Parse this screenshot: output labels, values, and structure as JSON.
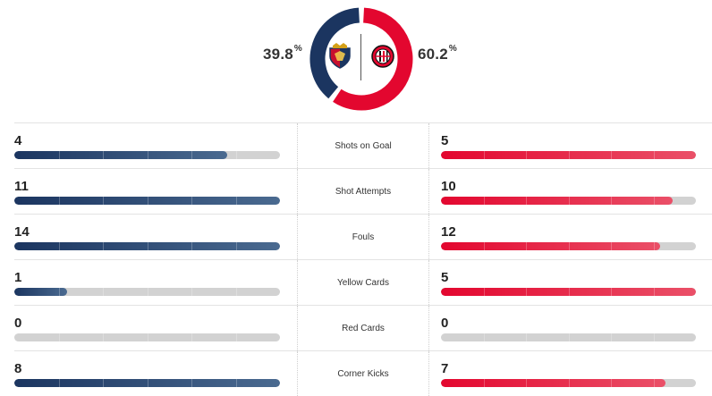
{
  "possession": {
    "home": {
      "value": "39.8",
      "unit": "%",
      "fraction": 0.398,
      "color": "#1b3560",
      "crest_icon": "genoa-crest-icon"
    },
    "away": {
      "value": "60.2",
      "unit": "%",
      "fraction": 0.602,
      "color": "#e3072f",
      "crest_icon": "ac-milan-crest-icon"
    }
  },
  "stats": [
    {
      "label": "Shots on Goal",
      "home": "4",
      "away": "5",
      "home_fill": 0.8,
      "away_fill": 1.0
    },
    {
      "label": "Shot Attempts",
      "home": "11",
      "away": "10",
      "home_fill": 1.0,
      "away_fill": 0.91
    },
    {
      "label": "Fouls",
      "home": "14",
      "away": "12",
      "home_fill": 1.0,
      "away_fill": 0.86
    },
    {
      "label": "Yellow Cards",
      "home": "1",
      "away": "5",
      "home_fill": 0.2,
      "away_fill": 1.0
    },
    {
      "label": "Red Cards",
      "home": "0",
      "away": "0",
      "home_fill": 0.0,
      "away_fill": 0.0
    },
    {
      "label": "Corner Kicks",
      "home": "8",
      "away": "7",
      "home_fill": 1.0,
      "away_fill": 0.88
    }
  ]
}
